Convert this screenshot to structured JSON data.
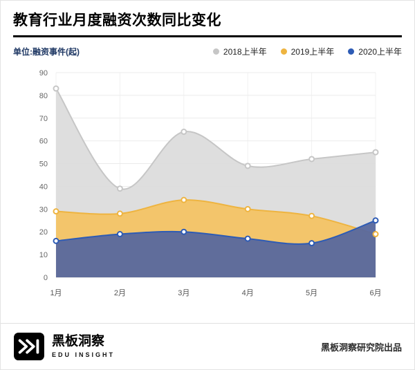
{
  "header": {
    "title": "教育行业月度融资次数同比变化",
    "unit_label": "单位:融资事件(起)"
  },
  "colors": {
    "title_rule": "#000000",
    "unit_label": "#1f3864"
  },
  "chart_data": {
    "type": "area",
    "title": "教育行业月度融资次数同比变化",
    "unit": "融资事件(起)",
    "categories": [
      "1月",
      "2月",
      "3月",
      "4月",
      "5月",
      "6月"
    ],
    "series": [
      {
        "name": "2018上半年",
        "line": "#c6c6c6",
        "fill": "#dcdcdc",
        "fill_opacity": 0.95,
        "values": [
          83,
          39,
          64,
          49,
          52,
          55
        ]
      },
      {
        "name": "2019上半年",
        "line": "#eeb440",
        "fill": "#f3c364",
        "fill_opacity": 0.95,
        "values": [
          29,
          28,
          34,
          30,
          27,
          19
        ]
      },
      {
        "name": "2020上半年",
        "line": "#2d5bb5",
        "fill": "#57689e",
        "fill_opacity": 0.95,
        "values": [
          16,
          19,
          20,
          17,
          15,
          25
        ]
      }
    ],
    "ylim": [
      0,
      90
    ],
    "ytick_step": 10,
    "grid": true,
    "legend_position": "top-right"
  },
  "footer": {
    "brand_name": "黑板洞察",
    "brand_sub": "EDU INSIGHT",
    "credit": "黑板洞察研究院出品"
  }
}
